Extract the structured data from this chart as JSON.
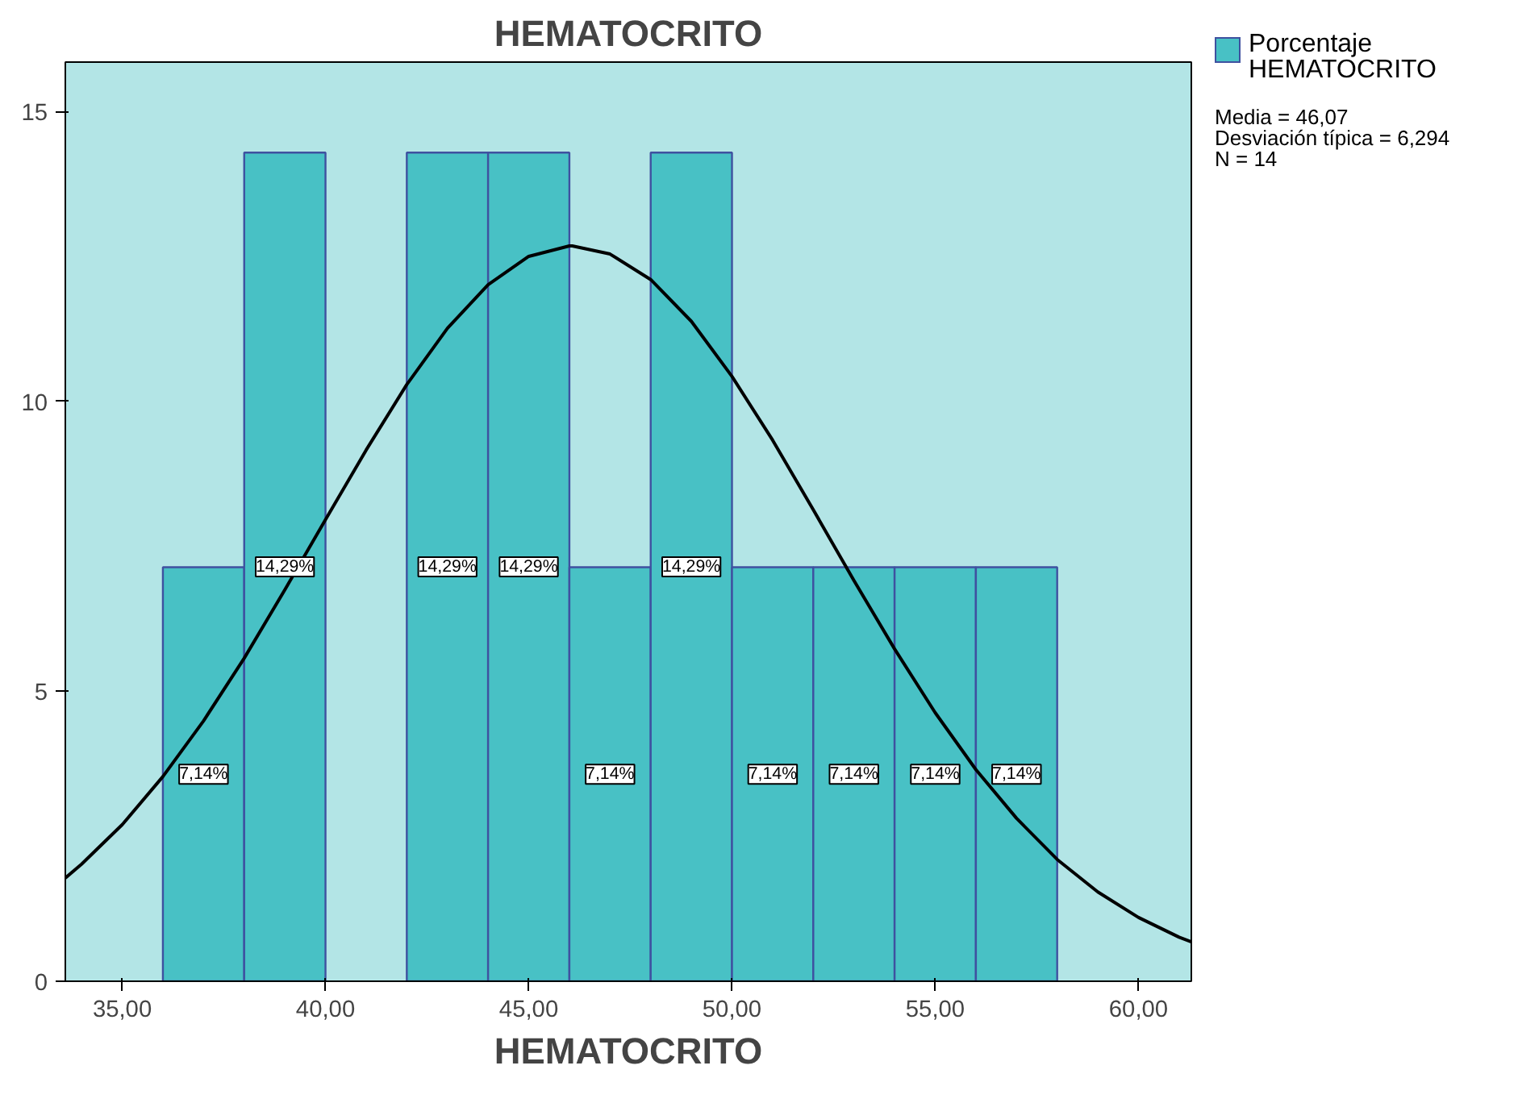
{
  "chart_data": {
    "type": "histogram",
    "title": "HEMATOCRITO",
    "xlabel": "HEMATOCRITO",
    "xlim": [
      33.6,
      61.3
    ],
    "ylim": [
      0,
      15.85
    ],
    "xticks": [
      {
        "value": 35,
        "label": "35,00"
      },
      {
        "value": 40,
        "label": "40,00"
      },
      {
        "value": 45,
        "label": "45,00"
      },
      {
        "value": 50,
        "label": "50,00"
      },
      {
        "value": 55,
        "label": "55,00"
      },
      {
        "value": 60,
        "label": "60,00"
      }
    ],
    "yticks": [
      0,
      5,
      10,
      15
    ],
    "grid": false,
    "legend": "top right",
    "series": [
      {
        "name": "Porcentaje HEMATOCRITO",
        "color": "#48c1c5",
        "bins": [
          36,
          38,
          40,
          42,
          44,
          46,
          48,
          50,
          52,
          54,
          56,
          58
        ],
        "values": [
          7.14,
          14.29,
          0,
          14.29,
          14.29,
          7.14,
          14.29,
          7.14,
          7.14,
          7.14,
          7.14
        ],
        "value_labels": [
          "7,14%",
          "14,29%",
          null,
          "14,29%",
          "14,29%",
          "7,14%",
          "14,29%",
          "7,14%",
          "7,14%",
          "7,14%",
          "7,14%"
        ]
      },
      {
        "type": "line",
        "color": "#000000",
        "x": [
          33.6,
          34,
          35,
          36,
          37,
          38,
          39,
          40,
          41,
          42,
          43,
          44,
          45,
          46,
          46.07,
          47,
          48,
          49,
          50,
          51,
          52,
          53,
          54,
          55,
          56,
          57,
          58,
          59,
          60,
          61,
          61.3
        ],
        "values": [
          1.78,
          2.02,
          2.7,
          3.53,
          4.49,
          5.57,
          6.75,
          7.96,
          9.16,
          10.29,
          11.26,
          12.01,
          12.5,
          12.68,
          12.68,
          12.54,
          12.1,
          11.38,
          10.43,
          9.33,
          8.13,
          6.91,
          5.73,
          4.63,
          3.65,
          2.81,
          2.1,
          1.54,
          1.1,
          0.76,
          0.68
        ]
      }
    ],
    "annotations": [
      "Media = 46,07",
      "Desviación típica = 6,294",
      "N = 14"
    ]
  }
}
